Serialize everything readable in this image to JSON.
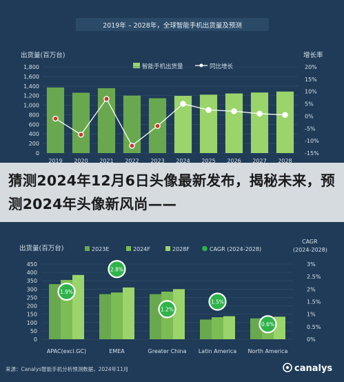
{
  "overlay": {
    "title": "猜测2024年12月6日头像最新发布，揭秘未来，预测2024年头像新风尚——"
  },
  "colors": {
    "background": "#1f3b57",
    "bar_bright": "#9bd46a",
    "bar_dark": "#6aa84f",
    "bar_mid": "#7cbc54",
    "line": "#ffffff",
    "bubble": "#2fb34a",
    "axis_text": "#d7e2ec",
    "grid": "#33506c"
  },
  "chart_data": [
    {
      "type": "bar",
      "title": "2019年 – 2028年，全球智能手机出货量及预测",
      "ylabel": "出货量(百万台)",
      "y2label": "增长率",
      "legend": [
        "智能手机出货量",
        "同比增长"
      ],
      "categories": [
        "2019",
        "2020",
        "2021",
        "2022",
        "2023",
        "2024",
        "2025",
        "2026",
        "2027",
        "2028"
      ],
      "series": [
        {
          "name": "智能手机出货量",
          "kind": "bar",
          "values": [
            1370,
            1260,
            1355,
            1200,
            1145,
            1195,
            1220,
            1245,
            1265,
            1285
          ]
        },
        {
          "name": "同比增长",
          "kind": "line",
          "axis": "right",
          "values": [
            -1,
            -7.5,
            7,
            -12,
            -4,
            5,
            2.5,
            2,
            1,
            0.5
          ]
        }
      ],
      "ylim": [
        0,
        1800
      ],
      "yticks": [
        0,
        200,
        400,
        600,
        800,
        1000,
        1200,
        1400,
        1600,
        1800
      ],
      "yticklabels": [
        "0",
        "200",
        "400",
        "600",
        "800",
        "1,000",
        "1,200",
        "1,400",
        "1,600",
        "1,800"
      ],
      "y2lim": [
        -15,
        20
      ],
      "y2ticks": [
        -15,
        -10,
        -5,
        0,
        5,
        10,
        15,
        20
      ],
      "y2ticklabels": [
        "-15%",
        "-10%",
        "-5%",
        "0%",
        "5%",
        "10%",
        "15%",
        "20%"
      ],
      "legend_position": "top"
    },
    {
      "type": "bar",
      "title": "",
      "ylabel": "出货量(百万台)",
      "y2label": "CAGR\n(2024-2028)",
      "categories": [
        "APAC(excl.GC)",
        "EMEA",
        "Greater China",
        "Latin America",
        "North America"
      ],
      "series": [
        {
          "name": "2023E",
          "values": [
            330,
            270,
            270,
            118,
            125
          ]
        },
        {
          "name": "2024F",
          "values": [
            355,
            280,
            285,
            132,
            130
          ]
        },
        {
          "name": "2028F",
          "values": [
            385,
            310,
            300,
            138,
            135
          ]
        },
        {
          "name": "CAGR (2024-2028)",
          "kind": "bubble",
          "axis": "right",
          "values": [
            1.9,
            2.8,
            1.2,
            1.5,
            0.6
          ],
          "labels": [
            "1.9%",
            "2.8%",
            "1.2%",
            "1.5%",
            "0.6%"
          ]
        }
      ],
      "ylim": [
        0,
        450
      ],
      "yticks": [
        0,
        50,
        100,
        150,
        200,
        250,
        300,
        350,
        400,
        450
      ],
      "yticklabels": [
        "0",
        "50",
        "100",
        "150",
        "200",
        "250",
        "300",
        "350",
        "400",
        "450"
      ],
      "y2lim": [
        0,
        3
      ],
      "y2ticks": [
        0,
        0.5,
        1,
        1.5,
        2,
        2.5,
        3
      ],
      "y2ticklabels": [
        "0%",
        "0.5%",
        "1%",
        "1.5%",
        "2%",
        "2.5%",
        "3%"
      ],
      "legend_position": "top"
    }
  ],
  "footer": {
    "source": "来源：Canalys智能手机分析预测数据，2024年11月",
    "brand": "canalys"
  }
}
